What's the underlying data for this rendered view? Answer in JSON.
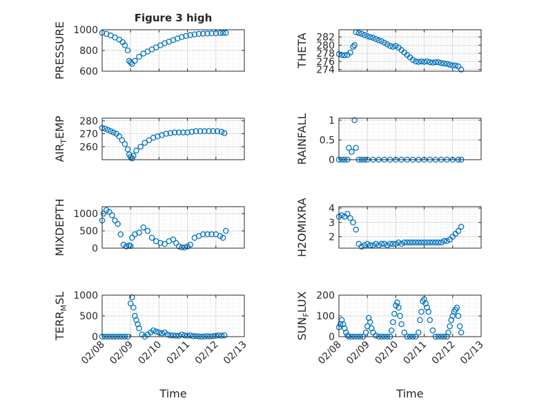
{
  "figure": {
    "title": "Figure 3 high",
    "xlabel": "Time",
    "x_tick_labels": [
      "02/08",
      "02/09",
      "02/10",
      "02/11",
      "02/12",
      "02/13"
    ],
    "marker_color": "#0072bd",
    "grid": "on"
  },
  "chart_data": [
    {
      "type": "scatter",
      "name": "pressure",
      "ylabel": "PRESSURE",
      "yticks": [
        600,
        800,
        1000
      ],
      "ylim": [
        600,
        1000
      ],
      "xlim": [
        8,
        13
      ],
      "show_xticks": false,
      "x": [
        8.0,
        8.15,
        8.3,
        8.45,
        8.6,
        8.72,
        8.8,
        8.9,
        8.95,
        9.0,
        9.05,
        9.15,
        9.3,
        9.45,
        9.6,
        9.75,
        9.9,
        10.05,
        10.2,
        10.35,
        10.5,
        10.65,
        10.8,
        10.95,
        11.1,
        11.25,
        11.4,
        11.55,
        11.7,
        11.85,
        12.0,
        12.15,
        12.25,
        12.35
      ],
      "y": [
        970,
        960,
        945,
        925,
        905,
        880,
        850,
        800,
        700,
        685,
        670,
        700,
        740,
        770,
        790,
        810,
        830,
        850,
        870,
        885,
        900,
        915,
        930,
        940,
        948,
        955,
        960,
        962,
        963,
        965,
        967,
        968,
        968,
        969
      ]
    },
    {
      "type": "scatter",
      "name": "theta",
      "ylabel": "THETA",
      "yticks": [
        274,
        276,
        278,
        280,
        282
      ],
      "ylim": [
        273.6,
        283.8
      ],
      "xlim": [
        8,
        13
      ],
      "show_xticks": false,
      "x": [
        8.0,
        8.1,
        8.2,
        8.3,
        8.4,
        8.5,
        8.55,
        8.6,
        8.7,
        8.8,
        8.9,
        9.0,
        9.1,
        9.2,
        9.3,
        9.4,
        9.5,
        9.6,
        9.7,
        9.8,
        9.9,
        10.0,
        10.1,
        10.2,
        10.3,
        10.4,
        10.5,
        10.6,
        10.7,
        10.8,
        10.9,
        11.0,
        11.1,
        11.2,
        11.3,
        11.4,
        11.5,
        11.6,
        11.7,
        11.8,
        11.9,
        12.0,
        12.1,
        12.2,
        12.3
      ],
      "y": [
        277.8,
        277.6,
        277.5,
        277.6,
        278.2,
        279.6,
        280.0,
        283.2,
        283.0,
        282.8,
        282.5,
        282.2,
        282.0,
        281.8,
        281.5,
        281.2,
        281.0,
        280.6,
        280.2,
        279.8,
        279.6,
        279.8,
        279.4,
        278.8,
        278.2,
        277.6,
        277.0,
        276.4,
        276.0,
        275.9,
        276.0,
        275.9,
        276.0,
        275.8,
        275.7,
        275.8,
        275.8,
        275.6,
        275.5,
        275.4,
        275.2,
        275.0,
        275.0,
        274.8,
        274.0
      ]
    },
    {
      "type": "scatter",
      "name": "air_temp",
      "ylabel": "AIR_TEMP",
      "yticks": [
        260,
        270,
        280
      ],
      "ylim": [
        250,
        282
      ],
      "xlim": [
        8,
        13
      ],
      "show_xticks": false,
      "x": [
        8.0,
        8.1,
        8.2,
        8.3,
        8.4,
        8.5,
        8.6,
        8.7,
        8.8,
        8.9,
        8.95,
        9.0,
        9.05,
        9.1,
        9.2,
        9.35,
        9.5,
        9.65,
        9.8,
        9.95,
        10.1,
        10.25,
        10.4,
        10.55,
        10.7,
        10.85,
        11.0,
        11.15,
        11.3,
        11.45,
        11.6,
        11.75,
        11.9,
        12.05,
        12.2,
        12.3
      ],
      "y": [
        274.5,
        274,
        273,
        272,
        271,
        270,
        268,
        265,
        262,
        258,
        254,
        252,
        251,
        253,
        257,
        260,
        263,
        265,
        267,
        268,
        269,
        270,
        270.5,
        271,
        271,
        271,
        271,
        271.5,
        272,
        272,
        272,
        272,
        272,
        272,
        271.5,
        270.5
      ]
    },
    {
      "type": "scatter",
      "name": "rainfall",
      "ylabel": "RAINFALL",
      "yticks": [
        0,
        0.5,
        1
      ],
      "ylim": [
        0,
        1.05
      ],
      "xlim": [
        8,
        13
      ],
      "show_xticks": false,
      "x": [
        8.0,
        8.1,
        8.2,
        8.3,
        8.35,
        8.45,
        8.55,
        8.6,
        8.7,
        8.8,
        8.9,
        9.0,
        9.2,
        9.4,
        9.6,
        9.8,
        10.0,
        10.2,
        10.4,
        10.6,
        10.8,
        11.0,
        11.2,
        11.4,
        11.6,
        11.8,
        12.0,
        12.2,
        12.3
      ],
      "y": [
        0,
        0,
        0,
        0,
        0.3,
        0.2,
        1.0,
        0.3,
        0,
        0,
        0,
        0,
        0,
        0,
        0,
        0,
        0,
        0,
        0,
        0,
        0,
        0,
        0,
        0,
        0,
        0,
        0,
        0,
        0
      ]
    },
    {
      "type": "scatter",
      "name": "mixdepth",
      "ylabel": "MIXDEPTH",
      "yticks": [
        0,
        500,
        1000
      ],
      "ylim": [
        0,
        1200
      ],
      "xlim": [
        8,
        13
      ],
      "show_xticks": false,
      "x": [
        8.0,
        8.05,
        8.15,
        8.25,
        8.35,
        8.45,
        8.55,
        8.65,
        8.75,
        8.85,
        8.95,
        9.0,
        9.05,
        9.15,
        9.3,
        9.45,
        9.6,
        9.75,
        9.9,
        10.05,
        10.2,
        10.35,
        10.5,
        10.6,
        10.7,
        10.8,
        10.9,
        11.0,
        11.1,
        11.25,
        11.4,
        11.55,
        11.7,
        11.85,
        12.0,
        12.15,
        12.25,
        12.35
      ],
      "y": [
        800,
        1000,
        1100,
        1050,
        950,
        800,
        700,
        400,
        100,
        50,
        80,
        60,
        300,
        400,
        450,
        600,
        500,
        300,
        200,
        150,
        120,
        200,
        250,
        150,
        50,
        20,
        20,
        50,
        100,
        300,
        350,
        400,
        400,
        400,
        400,
        350,
        300,
        500
      ]
    },
    {
      "type": "scatter",
      "name": "h2omixra",
      "ylabel": "H2OMIXRA",
      "yticks": [
        2,
        3,
        4
      ],
      "ylim": [
        1.2,
        4.1
      ],
      "xlim": [
        8,
        13
      ],
      "show_xticks": false,
      "x": [
        8.0,
        8.1,
        8.2,
        8.3,
        8.4,
        8.5,
        8.6,
        8.7,
        8.8,
        8.9,
        9.0,
        9.1,
        9.2,
        9.3,
        9.4,
        9.5,
        9.6,
        9.7,
        9.8,
        9.9,
        10.0,
        10.1,
        10.2,
        10.3,
        10.4,
        10.5,
        10.6,
        10.7,
        10.8,
        10.9,
        11.0,
        11.1,
        11.2,
        11.3,
        11.4,
        11.5,
        11.6,
        11.7,
        11.8,
        11.9,
        12.0,
        12.1,
        12.2,
        12.3
      ],
      "y": [
        3.4,
        3.5,
        3.4,
        3.6,
        3.3,
        3.0,
        2.5,
        1.5,
        1.3,
        1.4,
        1.5,
        1.4,
        1.4,
        1.5,
        1.4,
        1.5,
        1.5,
        1.4,
        1.5,
        1.5,
        1.5,
        1.6,
        1.5,
        1.6,
        1.6,
        1.6,
        1.6,
        1.6,
        1.6,
        1.6,
        1.6,
        1.6,
        1.6,
        1.6,
        1.6,
        1.6,
        1.6,
        1.7,
        1.7,
        1.8,
        2.0,
        2.2,
        2.4,
        2.7
      ]
    },
    {
      "type": "scatter",
      "name": "terr_msl",
      "ylabel": "TERR_MSL",
      "yticks": [
        0,
        500,
        1000
      ],
      "ylim": [
        0,
        1000
      ],
      "xlim": [
        8,
        13
      ],
      "show_xticks": true,
      "x": [
        8.0,
        8.1,
        8.2,
        8.3,
        8.4,
        8.5,
        8.6,
        8.7,
        8.8,
        8.9,
        9.0,
        9.05,
        9.1,
        9.15,
        9.2,
        9.25,
        9.3,
        9.4,
        9.5,
        9.6,
        9.7,
        9.8,
        9.9,
        10.0,
        10.1,
        10.2,
        10.3,
        10.4,
        10.5,
        10.6,
        10.7,
        10.8,
        10.9,
        11.0,
        11.1,
        11.2,
        11.3,
        11.4,
        11.5,
        11.6,
        11.7,
        11.8,
        11.9,
        12.0,
        12.1,
        12.2,
        12.3
      ],
      "y": [
        0,
        0,
        0,
        0,
        0,
        0,
        0,
        0,
        0,
        0,
        800,
        950,
        700,
        500,
        400,
        300,
        200,
        50,
        0,
        50,
        100,
        150,
        120,
        100,
        80,
        100,
        50,
        30,
        30,
        20,
        20,
        50,
        30,
        20,
        30,
        10,
        10,
        5,
        0,
        5,
        10,
        5,
        10,
        20,
        30,
        20,
        30
      ]
    },
    {
      "type": "scatter",
      "name": "sun_flux",
      "ylabel": "SUN_FLUX",
      "yticks": [
        0,
        100,
        200
      ],
      "ylim": [
        0,
        200
      ],
      "xlim": [
        8,
        13
      ],
      "show_xticks": true,
      "x": [
        8.0,
        8.05,
        8.1,
        8.15,
        8.2,
        8.25,
        8.3,
        8.35,
        8.45,
        8.55,
        8.65,
        8.75,
        8.85,
        8.95,
        9.0,
        9.05,
        9.1,
        9.15,
        9.2,
        9.3,
        9.4,
        9.5,
        9.6,
        9.7,
        9.8,
        9.85,
        9.9,
        9.95,
        10.0,
        10.05,
        10.1,
        10.15,
        10.2,
        10.3,
        10.4,
        10.5,
        10.6,
        10.7,
        10.8,
        10.85,
        10.9,
        10.95,
        11.0,
        11.05,
        11.1,
        11.15,
        11.2,
        11.3,
        11.4,
        11.5,
        11.6,
        11.7,
        11.8,
        11.85,
        11.9,
        11.95,
        12.0,
        12.05,
        12.1,
        12.15,
        12.2,
        12.25,
        12.3
      ],
      "y": [
        45,
        60,
        80,
        60,
        40,
        20,
        5,
        0,
        0,
        0,
        0,
        0,
        0,
        20,
        50,
        90,
        70,
        40,
        20,
        5,
        0,
        0,
        0,
        0,
        0,
        30,
        70,
        110,
        150,
        165,
        140,
        100,
        60,
        20,
        0,
        0,
        0,
        0,
        20,
        80,
        120,
        170,
        180,
        160,
        140,
        120,
        80,
        30,
        0,
        0,
        0,
        0,
        0,
        20,
        50,
        80,
        100,
        120,
        130,
        140,
        100,
        50,
        20
      ]
    }
  ]
}
